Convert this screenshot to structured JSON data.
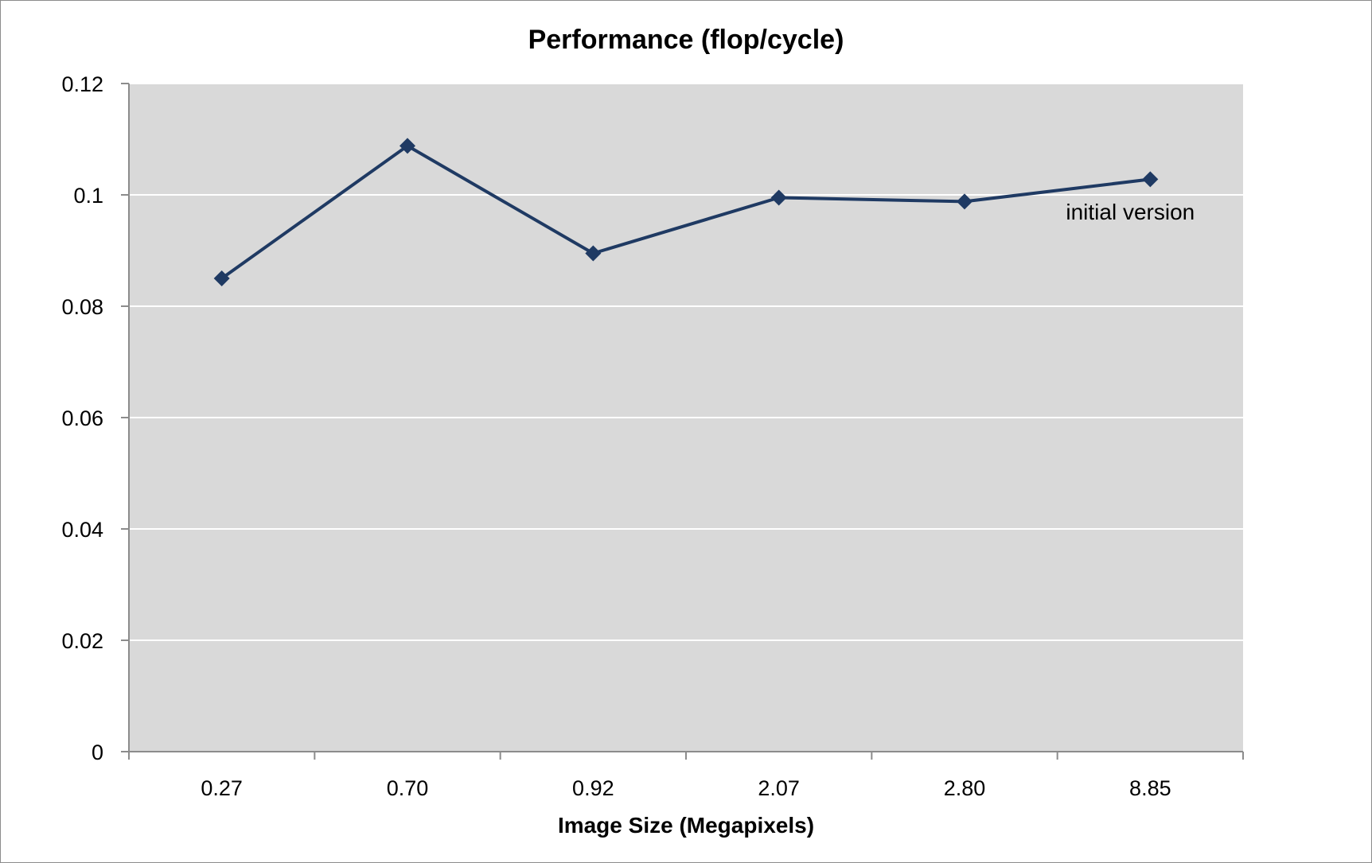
{
  "chart_data": {
    "type": "line",
    "title": "Performance (flop/cycle)",
    "xlabel": "Image Size (Megapixels)",
    "ylabel": "",
    "categories": [
      "0.27",
      "0.70",
      "0.92",
      "2.07",
      "2.80",
      "8.85"
    ],
    "series": [
      {
        "values": [
          0.085,
          0.1088,
          0.0895,
          0.0995,
          0.0988,
          0.1028
        ],
        "color": "#1f3a63",
        "marker": "diamond"
      }
    ],
    "ylim": [
      0,
      0.12
    ],
    "yticks": [
      "0",
      "0.02",
      "0.04",
      "0.06",
      "0.08",
      "0.1",
      "0.12"
    ],
    "grid": "horizontal",
    "plot_background": "#d9d9d9",
    "annotations": [
      {
        "text": "initial version",
        "category": "8.85",
        "y": 0.097
      }
    ]
  }
}
